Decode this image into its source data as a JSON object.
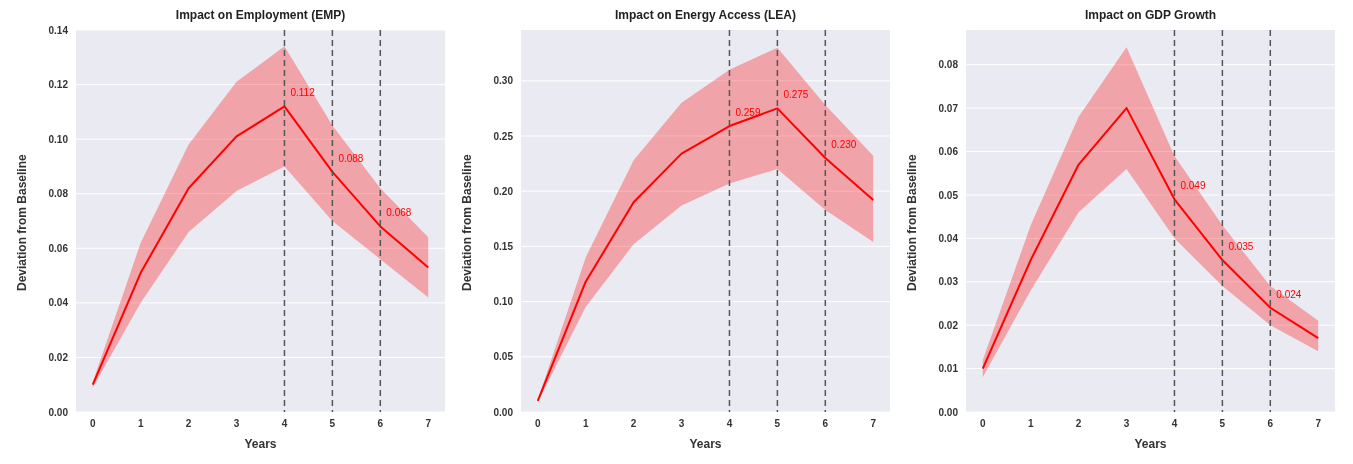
{
  "chart_data": [
    {
      "type": "line",
      "title": "Impact on Employment (EMP)",
      "xlabel": "Years",
      "ylabel": "Deviation from Baseline",
      "x": [
        0,
        1,
        2,
        3,
        4,
        5,
        6,
        7
      ],
      "xlim": [
        -0.35,
        7.35
      ],
      "xticks": [
        0,
        1,
        2,
        3,
        4,
        5,
        6,
        7
      ],
      "ylim": [
        0,
        0.14
      ],
      "yticks": [
        {
          "value": 0,
          "label": "0.00"
        },
        {
          "value": 0.02,
          "label": "0.02"
        },
        {
          "value": 0.04,
          "label": "0.04"
        },
        {
          "value": 0.06,
          "label": "0.06"
        },
        {
          "value": 0.08,
          "label": "0.08"
        },
        {
          "value": 0.1,
          "label": "0.10"
        },
        {
          "value": 0.12,
          "label": "0.12"
        },
        {
          "value": 0.14,
          "label": "0.14"
        }
      ],
      "series": [
        {
          "color": "#ff0000",
          "values": [
            0.01,
            0.051,
            0.082,
            0.101,
            0.112,
            0.088,
            0.068,
            0.053
          ],
          "lower": [
            0.009,
            0.04,
            0.066,
            0.081,
            0.09,
            0.07,
            0.056,
            0.042
          ],
          "upper": [
            0.011,
            0.062,
            0.098,
            0.121,
            0.134,
            0.105,
            0.082,
            0.064
          ],
          "value_labels": [
            null,
            null,
            null,
            null,
            "0.112",
            "0.088",
            "0.068",
            null
          ]
        }
      ],
      "ref_lines": [
        {
          "axis": "x",
          "value": 4,
          "color": "#555555",
          "line_style": "dashed"
        },
        {
          "axis": "x",
          "value": 5,
          "color": "#555555",
          "line_style": "dashed"
        },
        {
          "axis": "x",
          "value": 6,
          "color": "#555555",
          "line_style": "dashed"
        }
      ],
      "grid": "y",
      "marker": "none",
      "line_style": "solid"
    },
    {
      "type": "line",
      "title": "Impact on Energy Access (LEA)",
      "xlabel": "Years",
      "ylabel": "Deviation from Baseline",
      "x": [
        0,
        1,
        2,
        3,
        4,
        5,
        6,
        7
      ],
      "xlim": [
        -0.35,
        7.35
      ],
      "xticks": [
        0,
        1,
        2,
        3,
        4,
        5,
        6,
        7
      ],
      "ylim": [
        0,
        0.346
      ],
      "yticks": [
        {
          "value": 0,
          "label": "0.00"
        },
        {
          "value": 0.05,
          "label": "0.05"
        },
        {
          "value": 0.1,
          "label": "0.10"
        },
        {
          "value": 0.15,
          "label": "0.15"
        },
        {
          "value": 0.2,
          "label": "0.20"
        },
        {
          "value": 0.25,
          "label": "0.25"
        },
        {
          "value": 0.3,
          "label": "0.30"
        }
      ],
      "series": [
        {
          "color": "#ff0000",
          "values": [
            0.01,
            0.118,
            0.19,
            0.234,
            0.259,
            0.275,
            0.23,
            0.192
          ],
          "lower": [
            0.009,
            0.095,
            0.152,
            0.187,
            0.207,
            0.22,
            0.183,
            0.154
          ],
          "upper": [
            0.011,
            0.14,
            0.228,
            0.28,
            0.31,
            0.33,
            0.278,
            0.232
          ],
          "value_labels": [
            null,
            null,
            null,
            null,
            "0.259",
            "0.275",
            "0.230",
            null
          ]
        }
      ],
      "ref_lines": [
        {
          "axis": "x",
          "value": 4,
          "color": "#555555",
          "line_style": "dashed"
        },
        {
          "axis": "x",
          "value": 5,
          "color": "#555555",
          "line_style": "dashed"
        },
        {
          "axis": "x",
          "value": 6,
          "color": "#555555",
          "line_style": "dashed"
        }
      ],
      "grid": "y",
      "marker": "none",
      "line_style": "solid"
    },
    {
      "type": "line",
      "title": "Impact on GDP Growth",
      "xlabel": "Years",
      "ylabel": "Deviation from Baseline",
      "x": [
        0,
        1,
        2,
        3,
        4,
        5,
        6,
        7
      ],
      "xlim": [
        -0.35,
        7.35
      ],
      "xticks": [
        0,
        1,
        2,
        3,
        4,
        5,
        6,
        7
      ],
      "ylim": [
        0,
        0.088
      ],
      "yticks": [
        {
          "value": 0,
          "label": "0.00"
        },
        {
          "value": 0.01,
          "label": "0.01"
        },
        {
          "value": 0.02,
          "label": "0.02"
        },
        {
          "value": 0.03,
          "label": "0.03"
        },
        {
          "value": 0.04,
          "label": "0.04"
        },
        {
          "value": 0.05,
          "label": "0.05"
        },
        {
          "value": 0.06,
          "label": "0.06"
        },
        {
          "value": 0.07,
          "label": "0.07"
        },
        {
          "value": 0.08,
          "label": "0.08"
        }
      ],
      "series": [
        {
          "color": "#ff0000",
          "values": [
            0.01,
            0.035,
            0.057,
            0.07,
            0.049,
            0.035,
            0.024,
            0.017
          ],
          "lower": [
            0.008,
            0.028,
            0.046,
            0.056,
            0.04,
            0.029,
            0.02,
            0.014
          ],
          "upper": [
            0.012,
            0.043,
            0.068,
            0.084,
            0.059,
            0.043,
            0.029,
            0.021
          ],
          "value_labels": [
            null,
            null,
            null,
            null,
            "0.049",
            "0.035",
            "0.024",
            null
          ]
        }
      ],
      "ref_lines": [
        {
          "axis": "x",
          "value": 4,
          "color": "#555555",
          "line_style": "dashed"
        },
        {
          "axis": "x",
          "value": 5,
          "color": "#555555",
          "line_style": "dashed"
        },
        {
          "axis": "x",
          "value": 6,
          "color": "#555555",
          "line_style": "dashed"
        }
      ],
      "grid": "y",
      "marker": "none",
      "line_style": "solid"
    }
  ]
}
